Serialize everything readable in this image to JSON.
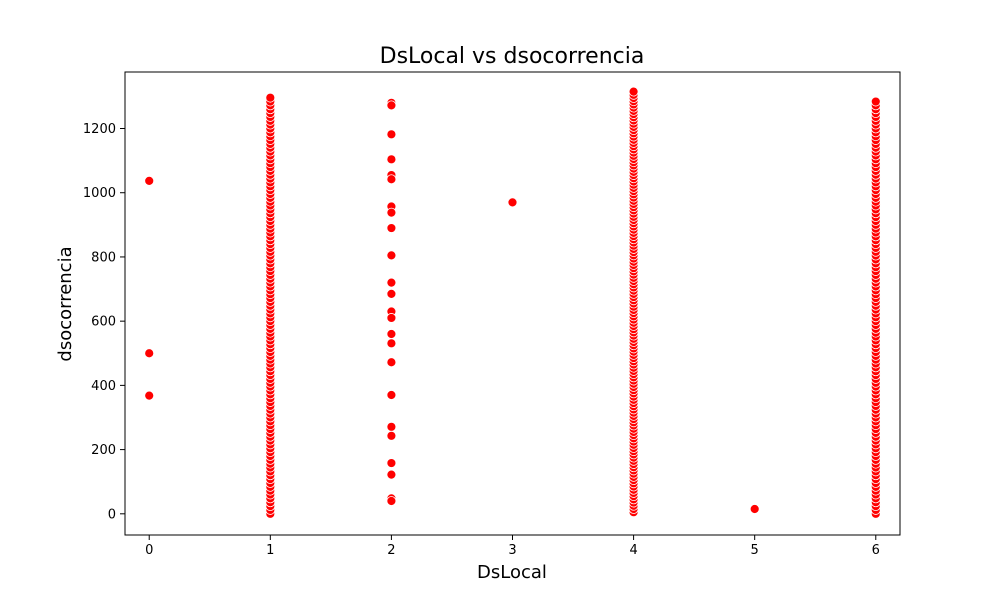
{
  "chart_data": {
    "type": "scatter",
    "title": "DsLocal vs dsocorrencia",
    "xlabel": "DsLocal",
    "ylabel": "dsocorrencia",
    "xlim": [
      -0.2,
      6.2
    ],
    "ylim": [
      -66,
      1376
    ],
    "xticks": [
      0,
      1,
      2,
      3,
      4,
      5,
      6
    ],
    "yticks": [
      0,
      200,
      400,
      600,
      800,
      1000,
      1200
    ],
    "grid": false,
    "marker_color": "#ff0000",
    "marker_edge_color": "#ffffff",
    "points": [
      {
        "x": 0,
        "y": 1037
      },
      {
        "x": 0,
        "y": 500
      },
      {
        "x": 0,
        "y": 368
      },
      {
        "x": 3,
        "y": 970
      },
      {
        "x": 5,
        "y": 15
      },
      {
        "x": 2,
        "y": 1280
      },
      {
        "x": 2,
        "y": 1272
      },
      {
        "x": 2,
        "y": 1182
      },
      {
        "x": 2,
        "y": 1104
      },
      {
        "x": 2,
        "y": 1055
      },
      {
        "x": 2,
        "y": 1042
      },
      {
        "x": 2,
        "y": 957
      },
      {
        "x": 2,
        "y": 938
      },
      {
        "x": 2,
        "y": 890
      },
      {
        "x": 2,
        "y": 805
      },
      {
        "x": 2,
        "y": 720
      },
      {
        "x": 2,
        "y": 685
      },
      {
        "x": 2,
        "y": 630
      },
      {
        "x": 2,
        "y": 610
      },
      {
        "x": 2,
        "y": 560
      },
      {
        "x": 2,
        "y": 531
      },
      {
        "x": 2,
        "y": 472
      },
      {
        "x": 2,
        "y": 370
      },
      {
        "x": 2,
        "y": 271
      },
      {
        "x": 2,
        "y": 243
      },
      {
        "x": 2,
        "y": 158
      },
      {
        "x": 2,
        "y": 122
      },
      {
        "x": 2,
        "y": 48
      },
      {
        "x": 2,
        "y": 40
      }
    ],
    "dense_columns": [
      {
        "x": 1,
        "y_min": 0,
        "y_max": 1300,
        "step": 12
      },
      {
        "x": 4,
        "y_min": 5,
        "y_max": 1315,
        "step": 10
      },
      {
        "x": 6,
        "y_min": 0,
        "y_max": 1295,
        "step": 12
      }
    ]
  }
}
